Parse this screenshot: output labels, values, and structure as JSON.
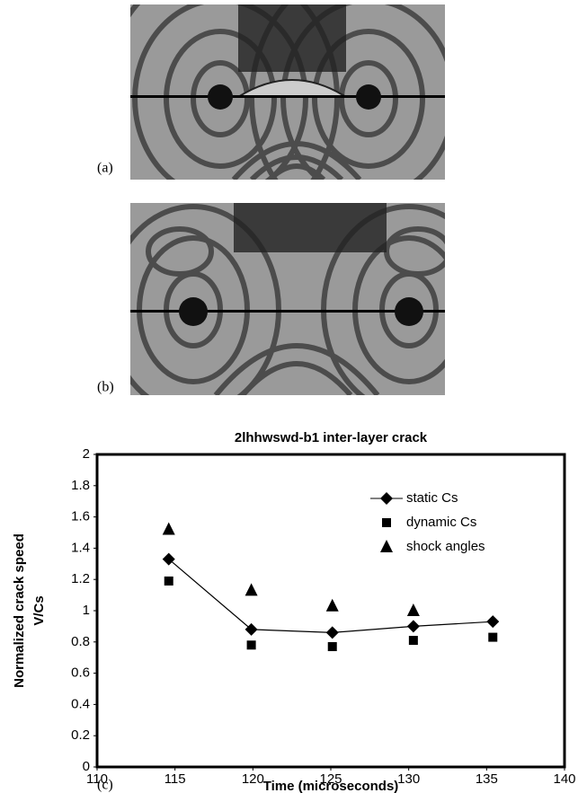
{
  "panel_labels": [
    "(a)",
    "(b)",
    "(c)"
  ],
  "chart_data": {
    "type": "line",
    "title": "2lhhwswd-b1 inter-layer crack",
    "x_label": "Time (microseconds)",
    "y_label": [
      "Normalized crack speed",
      "V/Cs"
    ],
    "x": [
      114.6,
      119.9,
      125.1,
      130.3,
      135.4
    ],
    "series": [
      {
        "name": "static Cs",
        "color": "#000000",
        "marker": "diamond",
        "line": true,
        "values": [
          1.33,
          0.88,
          0.86,
          0.9,
          0.93
        ]
      },
      {
        "name": "dynamic Cs",
        "color": "#000000",
        "marker": "square",
        "line": false,
        "values": [
          1.19,
          0.78,
          0.77,
          0.81,
          0.83
        ]
      },
      {
        "name": "shock angles",
        "color": "#000000",
        "marker": "triangle",
        "line": false,
        "values": [
          1.52,
          1.13,
          1.03,
          1.0,
          null
        ]
      }
    ],
    "xlim": [
      110,
      140
    ],
    "xticks": [
      110,
      115,
      120,
      125,
      130,
      135,
      140
    ],
    "ylim": [
      0,
      2
    ],
    "yticks": [
      0,
      0.2,
      0.4,
      0.6,
      0.8,
      1,
      1.2,
      1.4,
      1.6,
      1.8,
      2
    ],
    "grid": false,
    "legend": "upper-right"
  }
}
